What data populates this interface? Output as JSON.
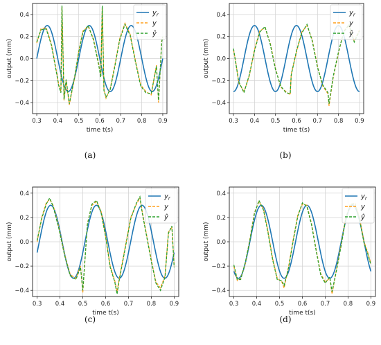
{
  "colors": {
    "ref": "#1f77b4",
    "y": "#ff9f1c",
    "yhat": "#2ca02c",
    "grid": "#d4d4d4",
    "axis": "#222222"
  },
  "chart_data": [
    {
      "type": "line",
      "caption": "(a)",
      "xlabel": "time t(s)",
      "ylabel": "output (mm)",
      "xlim": [
        0.28,
        0.92
      ],
      "ylim": [
        -0.5,
        0.5
      ],
      "xticks": [
        0.3,
        0.4,
        0.5,
        0.6,
        0.7,
        0.8,
        0.9
      ],
      "yticks": [
        -0.4,
        -0.2,
        0.0,
        0.2,
        0.4
      ],
      "xtick_labels": [
        "0.3",
        "0.4",
        "0.5",
        "0.6",
        "0.7",
        "0.8",
        "0.9"
      ],
      "ytick_labels": [
        "−0.4",
        "−0.2",
        "0.0",
        "0.2",
        "0.4"
      ],
      "grid": true,
      "legend_position": "top-right",
      "legend": [
        "y_r",
        "y",
        "ŷ"
      ],
      "reference": {
        "amplitude": 0.3,
        "frequency_hz": 5,
        "phase_rad": 0
      },
      "series": [
        {
          "name": "y_r",
          "x": [
            0.3,
            0.325,
            0.35,
            0.375,
            0.4,
            0.425,
            0.45,
            0.475,
            0.5,
            0.525,
            0.55,
            0.575,
            0.6,
            0.625,
            0.65,
            0.675,
            0.7,
            0.725,
            0.75,
            0.775,
            0.8,
            0.825,
            0.85,
            0.875,
            0.9
          ],
          "y": [
            0.0,
            0.21,
            0.3,
            0.21,
            0.0,
            -0.21,
            -0.3,
            -0.21,
            0.0,
            0.21,
            0.3,
            0.21,
            0.0,
            -0.21,
            -0.3,
            -0.21,
            0.0,
            0.21,
            0.3,
            0.21,
            0.0,
            -0.21,
            -0.3,
            -0.21,
            0.0
          ]
        },
        {
          "name": "y",
          "x": [
            0.3,
            0.32,
            0.345,
            0.37,
            0.395,
            0.405,
            0.415,
            0.42,
            0.43,
            0.44,
            0.455,
            0.48,
            0.5,
            0.52,
            0.545,
            0.57,
            0.595,
            0.605,
            0.612,
            0.62,
            0.63,
            0.65,
            0.67,
            0.695,
            0.72,
            0.745,
            0.77,
            0.795,
            0.82,
            0.845,
            0.87,
            0.88,
            0.895,
            0.9
          ],
          "y": [
            0.14,
            0.27,
            0.28,
            0.13,
            -0.13,
            -0.24,
            -0.3,
            0.47,
            -0.38,
            -0.2,
            -0.42,
            -0.18,
            0.07,
            0.25,
            0.29,
            0.18,
            -0.05,
            -0.16,
            0.46,
            -0.28,
            -0.36,
            -0.27,
            -0.08,
            0.18,
            0.32,
            0.22,
            -0.02,
            -0.24,
            -0.3,
            -0.33,
            -0.06,
            -0.4,
            0.16,
            0.19
          ]
        },
        {
          "name": "ŷ",
          "x": [
            0.3,
            0.32,
            0.345,
            0.37,
            0.395,
            0.405,
            0.415,
            0.42,
            0.43,
            0.44,
            0.455,
            0.48,
            0.5,
            0.52,
            0.545,
            0.57,
            0.595,
            0.605,
            0.612,
            0.62,
            0.63,
            0.65,
            0.67,
            0.695,
            0.72,
            0.745,
            0.77,
            0.795,
            0.82,
            0.845,
            0.87,
            0.88,
            0.895,
            0.9
          ],
          "y": [
            0.15,
            0.26,
            0.27,
            0.12,
            -0.14,
            -0.25,
            -0.31,
            0.48,
            -0.37,
            -0.19,
            -0.41,
            -0.17,
            0.06,
            0.24,
            0.3,
            0.17,
            -0.06,
            -0.17,
            0.48,
            -0.29,
            -0.35,
            -0.28,
            -0.09,
            0.17,
            0.31,
            0.21,
            -0.03,
            -0.25,
            -0.31,
            -0.32,
            -0.07,
            -0.38,
            0.15,
            0.2
          ]
        }
      ]
    },
    {
      "type": "line",
      "caption": "(b)",
      "xlabel": "time t(s)",
      "ylabel": "output (mm)",
      "xlim": [
        0.28,
        0.92
      ],
      "ylim": [
        -0.5,
        0.5
      ],
      "xticks": [
        0.3,
        0.4,
        0.5,
        0.6,
        0.7,
        0.8,
        0.9
      ],
      "yticks": [
        -0.4,
        -0.2,
        0.0,
        0.2,
        0.4
      ],
      "xtick_labels": [
        "0.3",
        "0.4",
        "0.5",
        "0.6",
        "0.7",
        "0.8",
        "0.9"
      ],
      "ytick_labels": [
        "−0.4",
        "−0.2",
        "0.0",
        "0.2",
        "0.4"
      ],
      "grid": true,
      "legend_position": "top-right",
      "legend": [
        "y_r",
        "y",
        "ŷ"
      ],
      "reference": {
        "amplitude": 0.3,
        "frequency_hz": 5,
        "phase_rad": -1.5708
      },
      "series": [
        {
          "name": "y_r",
          "x": [
            0.3,
            0.325,
            0.35,
            0.375,
            0.4,
            0.425,
            0.45,
            0.475,
            0.5,
            0.525,
            0.55,
            0.575,
            0.6,
            0.625,
            0.65,
            0.675,
            0.7,
            0.725,
            0.75,
            0.775,
            0.8,
            0.825,
            0.85,
            0.875,
            0.9
          ],
          "y": [
            0.0,
            -0.21,
            -0.3,
            -0.21,
            0.0,
            0.21,
            0.3,
            0.21,
            0.0,
            -0.21,
            -0.3,
            -0.21,
            0.0,
            0.21,
            0.3,
            0.21,
            0.0,
            -0.21,
            -0.3,
            -0.21,
            0.0,
            0.21,
            0.3,
            0.21,
            0.0
          ]
        },
        {
          "name": "y",
          "x": [
            0.3,
            0.31,
            0.325,
            0.35,
            0.375,
            0.4,
            0.425,
            0.45,
            0.475,
            0.5,
            0.525,
            0.55,
            0.57,
            0.575,
            0.6,
            0.625,
            0.65,
            0.675,
            0.7,
            0.725,
            0.75,
            0.755,
            0.775,
            0.8,
            0.825,
            0.85,
            0.875,
            0.9
          ],
          "y": [
            0.08,
            -0.02,
            -0.22,
            -0.3,
            -0.16,
            0.08,
            0.25,
            0.28,
            0.14,
            -0.09,
            -0.26,
            -0.3,
            -0.33,
            -0.14,
            0.06,
            0.24,
            0.3,
            0.17,
            -0.07,
            -0.25,
            -0.32,
            -0.43,
            -0.17,
            0.05,
            0.25,
            0.3,
            0.16,
            0.26
          ]
        },
        {
          "name": "ŷ",
          "x": [
            0.3,
            0.31,
            0.325,
            0.35,
            0.375,
            0.4,
            0.425,
            0.45,
            0.475,
            0.5,
            0.525,
            0.55,
            0.57,
            0.575,
            0.6,
            0.625,
            0.65,
            0.675,
            0.7,
            0.725,
            0.75,
            0.755,
            0.775,
            0.8,
            0.825,
            0.85,
            0.875,
            0.9
          ],
          "y": [
            0.09,
            -0.03,
            -0.21,
            -0.31,
            -0.15,
            0.07,
            0.24,
            0.29,
            0.13,
            -0.1,
            -0.25,
            -0.31,
            -0.32,
            -0.15,
            0.07,
            0.23,
            0.31,
            0.16,
            -0.08,
            -0.24,
            -0.31,
            -0.41,
            -0.16,
            0.06,
            0.24,
            0.31,
            0.15,
            0.25
          ]
        }
      ]
    },
    {
      "type": "line",
      "caption": "(c)",
      "xlabel": "time t(s)",
      "ylabel": "output (mm)",
      "xlim": [
        0.28,
        0.92
      ],
      "ylim": [
        -0.45,
        0.45
      ],
      "xticks": [
        0.3,
        0.4,
        0.5,
        0.6,
        0.7,
        0.8,
        0.9
      ],
      "yticks": [
        -0.4,
        -0.2,
        0.0,
        0.2,
        0.4
      ],
      "xtick_labels": [
        "0.3",
        "0.4",
        "0.5",
        "0.6",
        "0.7",
        "0.8",
        "0.9"
      ],
      "ytick_labels": [
        "−0.4",
        "−0.2",
        "0.0",
        "0.2",
        "0.4"
      ],
      "grid": true,
      "legend_position": "top-right",
      "legend": [
        "y_r",
        "y",
        "ŷ"
      ],
      "reference": {
        "amplitude": 0.3,
        "frequency_hz": 5,
        "phase_rad": -0.3
      },
      "series": [
        {
          "name": "y_r",
          "x": [
            0.3,
            0.325,
            0.35,
            0.375,
            0.4,
            0.425,
            0.45,
            0.475,
            0.5,
            0.525,
            0.55,
            0.575,
            0.6,
            0.625,
            0.65,
            0.675,
            0.7,
            0.725,
            0.75,
            0.775,
            0.8,
            0.825,
            0.85,
            0.875,
            0.9
          ],
          "y": [
            -0.09,
            0.14,
            0.29,
            0.25,
            0.09,
            -0.14,
            -0.29,
            -0.25,
            -0.09,
            0.14,
            0.29,
            0.25,
            0.09,
            -0.14,
            -0.29,
            -0.25,
            -0.09,
            0.14,
            0.29,
            0.25,
            0.09,
            -0.14,
            -0.29,
            -0.25,
            -0.09
          ]
        },
        {
          "name": "y",
          "x": [
            0.3,
            0.32,
            0.34,
            0.355,
            0.37,
            0.395,
            0.42,
            0.445,
            0.47,
            0.49,
            0.5,
            0.52,
            0.54,
            0.56,
            0.58,
            0.6,
            0.62,
            0.64,
            0.65,
            0.66,
            0.685,
            0.71,
            0.735,
            0.75,
            0.76,
            0.78,
            0.8,
            0.82,
            0.84,
            0.86,
            0.875,
            0.89,
            0.9
          ],
          "y": [
            0.0,
            0.2,
            0.32,
            0.35,
            0.3,
            0.12,
            -0.1,
            -0.27,
            -0.3,
            -0.2,
            -0.42,
            0.15,
            0.3,
            0.33,
            0.25,
            0.05,
            -0.2,
            -0.32,
            -0.41,
            -0.3,
            -0.05,
            0.2,
            0.31,
            0.36,
            0.25,
            0.05,
            -0.15,
            -0.33,
            -0.38,
            -0.28,
            0.08,
            0.12,
            -0.2
          ]
        },
        {
          "name": "ŷ",
          "x": [
            0.3,
            0.32,
            0.34,
            0.355,
            0.37,
            0.395,
            0.42,
            0.445,
            0.47,
            0.49,
            0.5,
            0.52,
            0.54,
            0.56,
            0.58,
            0.6,
            0.62,
            0.64,
            0.65,
            0.66,
            0.685,
            0.71,
            0.735,
            0.75,
            0.76,
            0.78,
            0.8,
            0.82,
            0.84,
            0.86,
            0.875,
            0.89,
            0.9
          ],
          "y": [
            0.01,
            0.19,
            0.31,
            0.36,
            0.29,
            0.11,
            -0.11,
            -0.28,
            -0.31,
            -0.21,
            -0.4,
            0.14,
            0.31,
            0.34,
            0.24,
            0.04,
            -0.21,
            -0.33,
            -0.43,
            -0.31,
            -0.06,
            0.19,
            0.32,
            0.37,
            0.24,
            0.04,
            -0.16,
            -0.34,
            -0.4,
            -0.29,
            0.07,
            0.13,
            -0.21
          ]
        }
      ]
    },
    {
      "type": "line",
      "caption": "(d)",
      "xlabel": "time t(s)",
      "ylabel": "output (mm)",
      "xlim": [
        0.28,
        0.92
      ],
      "ylim": [
        -0.45,
        0.45
      ],
      "xticks": [
        0.3,
        0.4,
        0.5,
        0.6,
        0.7,
        0.8,
        0.9
      ],
      "yticks": [
        -0.4,
        -0.2,
        0.0,
        0.2,
        0.4
      ],
      "xtick_labels": [
        "0.3",
        "0.4",
        "0.5",
        "0.6",
        "0.7",
        "0.8",
        "0.9"
      ],
      "ytick_labels": [
        "−0.4",
        "−0.2",
        "0.0",
        "0.2",
        "0.4"
      ],
      "grid": true,
      "legend_position": "top-right",
      "legend": [
        "y_r",
        "y",
        "ŷ"
      ],
      "reference": {
        "amplitude": 0.3,
        "frequency_hz": 5,
        "phase_rad": -2.2
      },
      "series": [
        {
          "name": "y_r",
          "x": [
            0.3,
            0.325,
            0.35,
            0.375,
            0.4,
            0.425,
            0.45,
            0.475,
            0.5,
            0.525,
            0.55,
            0.575,
            0.6,
            0.625,
            0.65,
            0.675,
            0.7,
            0.725,
            0.75,
            0.775,
            0.8,
            0.825,
            0.85,
            0.875,
            0.9
          ],
          "y": [
            -0.24,
            -0.28,
            -0.15,
            0.06,
            0.24,
            0.28,
            0.15,
            -0.06,
            -0.24,
            -0.28,
            -0.15,
            0.06,
            0.24,
            0.28,
            0.15,
            -0.06,
            -0.24,
            -0.28,
            -0.15,
            0.06,
            0.24,
            0.28,
            0.15,
            -0.06,
            -0.24
          ]
        },
        {
          "name": "y",
          "x": [
            0.3,
            0.315,
            0.33,
            0.35,
            0.37,
            0.39,
            0.41,
            0.43,
            0.45,
            0.47,
            0.49,
            0.51,
            0.52,
            0.54,
            0.56,
            0.58,
            0.6,
            0.62,
            0.64,
            0.66,
            0.68,
            0.7,
            0.72,
            0.73,
            0.75,
            0.77,
            0.79,
            0.81,
            0.83,
            0.85,
            0.87,
            0.885,
            0.9
          ],
          "y": [
            -0.2,
            -0.32,
            -0.3,
            -0.18,
            0.02,
            0.24,
            0.33,
            0.27,
            0.08,
            -0.14,
            -0.3,
            -0.33,
            -0.38,
            -0.2,
            0.02,
            0.22,
            0.31,
            0.3,
            0.15,
            -0.06,
            -0.26,
            -0.33,
            -0.3,
            -0.43,
            -0.22,
            -0.02,
            0.2,
            0.3,
            0.32,
            0.2,
            0.0,
            -0.08,
            -0.18
          ]
        },
        {
          "name": "ŷ",
          "x": [
            0.3,
            0.315,
            0.33,
            0.35,
            0.37,
            0.39,
            0.41,
            0.43,
            0.45,
            0.47,
            0.49,
            0.51,
            0.52,
            0.54,
            0.56,
            0.58,
            0.6,
            0.62,
            0.64,
            0.66,
            0.68,
            0.7,
            0.72,
            0.73,
            0.75,
            0.77,
            0.79,
            0.81,
            0.83,
            0.85,
            0.87,
            0.885,
            0.9
          ],
          "y": [
            -0.19,
            -0.31,
            -0.31,
            -0.17,
            0.01,
            0.23,
            0.34,
            0.26,
            0.07,
            -0.15,
            -0.31,
            -0.32,
            -0.36,
            -0.21,
            0.01,
            0.21,
            0.32,
            0.29,
            0.14,
            -0.07,
            -0.27,
            -0.34,
            -0.29,
            -0.41,
            -0.23,
            -0.03,
            0.19,
            0.31,
            0.31,
            0.19,
            -0.01,
            -0.09,
            -0.19
          ]
        }
      ]
    }
  ]
}
